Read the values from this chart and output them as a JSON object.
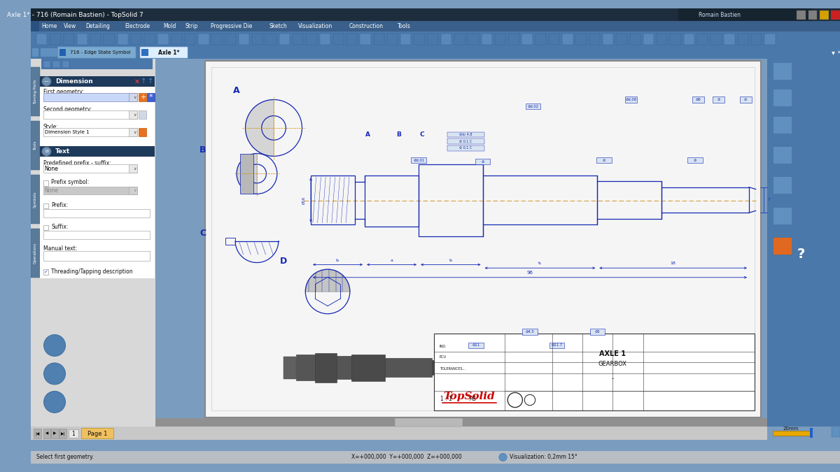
{
  "title_bar": "Axle 1* - 716 (Romain Bastien) - TopSolid 7",
  "main_bg": "#7a9cbf",
  "title_bar_bg": "#1e2d3d",
  "menubar_bg": "#3a5f8a",
  "toolbar_bg": "#4a78aa",
  "tab_bar_bg": "#4a78aa",
  "tab_716": "716 - Edge State Symbol",
  "tab_axle": "Axle 1*",
  "tab_inactive_bg": "#7aaad0",
  "tab_active_bg": "#ddeeff",
  "left_panel_bg": "#d8d8d8",
  "left_vert_tab_bg": "#5a7a9a",
  "left_vert_labels": [
    "Turning Parts",
    "Tools",
    "Symbols",
    "Operations"
  ],
  "dim_header_bg": "#1e3a5a",
  "text_header_bg": "#1e3a5a",
  "drawing_bg": "#f5f5f5",
  "drawing_border": "#aaaaaa",
  "cad_color": "#1428b4",
  "cad_lw": 0.9,
  "dim_color": "#1428b4",
  "section_label_color": "#1428b4",
  "title_block_text1": "AXLE 1",
  "title_block_text2": "GEARBOX",
  "logo_color": "#cc0000",
  "right_panel_bg": "#4a78aa",
  "status_bar_bg": "#b8bec4",
  "status_text": "Select first geometry.",
  "status_coords": "X=+000,000  Y=+000,000  Z=+000,000",
  "status_viz": "Visualization: 0,2mm 15°",
  "page_tab_bg": "#f0c060",
  "page_tab_text": "Page 1",
  "scale_bar_color": "#e8a800",
  "scale_label": "20mm",
  "menubar_items": [
    "Home",
    "View",
    "Detailing",
    "Electrode",
    "Mold",
    "Strip",
    "Progressive Die",
    "Sketch",
    "Visualization",
    "Construction",
    "Tools"
  ]
}
